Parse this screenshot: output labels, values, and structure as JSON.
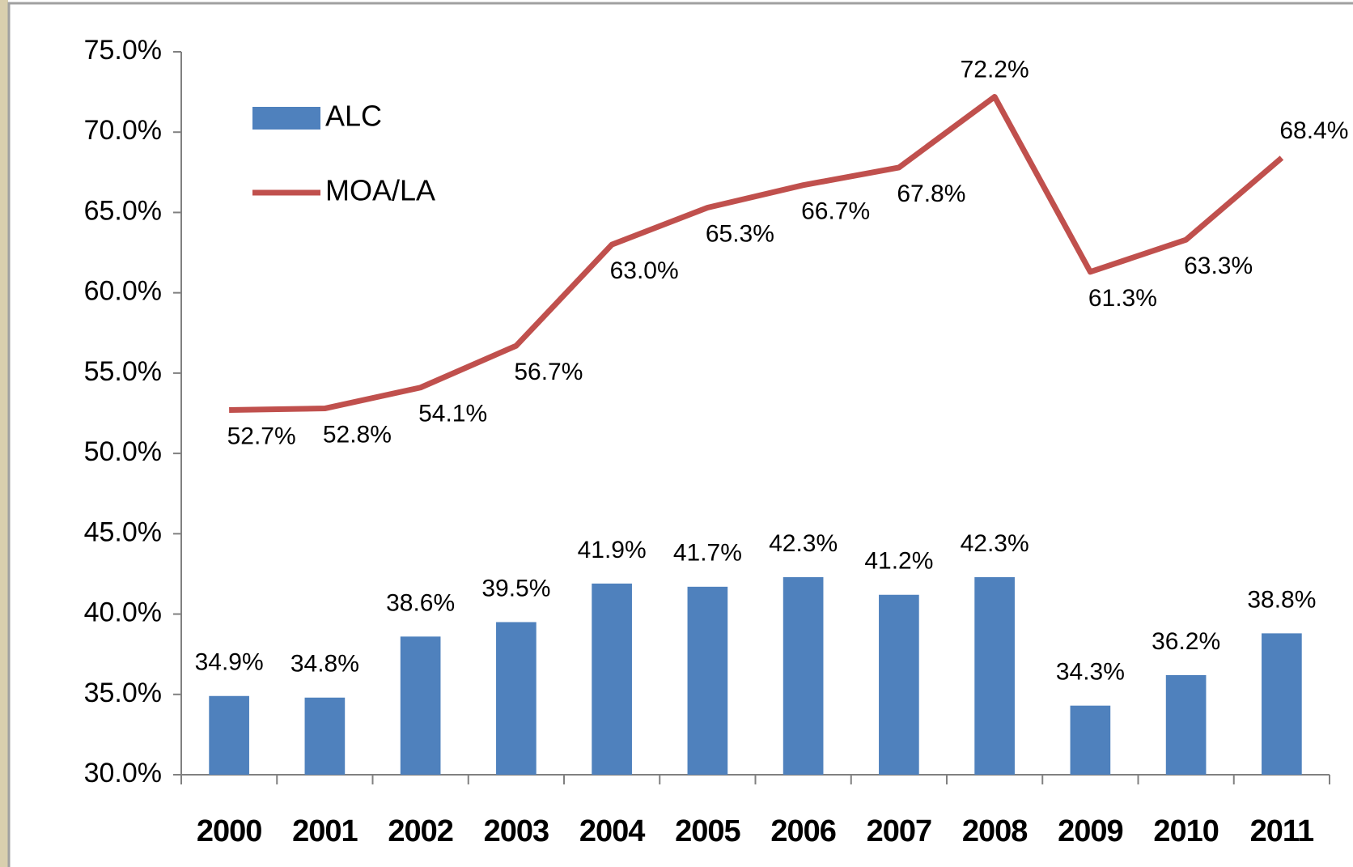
{
  "chart_data": {
    "type": "bar",
    "categories": [
      "2000",
      "2001",
      "2002",
      "2003",
      "2004",
      "2005",
      "2006",
      "2007",
      "2008",
      "2009",
      "2010",
      "2011"
    ],
    "series": [
      {
        "name": "ALC",
        "type": "bar",
        "color": "#4f81bd",
        "values": [
          34.9,
          34.8,
          38.6,
          39.5,
          41.9,
          41.7,
          42.3,
          41.2,
          42.3,
          34.3,
          36.2,
          38.8
        ],
        "value_labels": [
          "34.9%",
          "34.8%",
          "38.6%",
          "39.5%",
          "41.9%",
          "41.7%",
          "42.3%",
          "41.2%",
          "42.3%",
          "34.3%",
          "36.2%",
          "38.8%"
        ]
      },
      {
        "name": "MOA/LA",
        "type": "line",
        "color": "#c0504d",
        "values": [
          52.7,
          52.8,
          54.1,
          56.7,
          63.0,
          65.3,
          66.7,
          67.8,
          72.2,
          61.3,
          63.3,
          68.4
        ],
        "value_labels": [
          "52.7%",
          "52.8%",
          "54.1%",
          "56.7%",
          "63.0%",
          "65.3%",
          "66.7%",
          "67.8%",
          "72.2%",
          "61.3%",
          "63.3%",
          "68.4%"
        ]
      }
    ],
    "ylim": [
      30,
      75
    ],
    "yticks": [
      {
        "value": 30,
        "label": "30.0%"
      },
      {
        "value": 35,
        "label": "35.0%"
      },
      {
        "value": 40,
        "label": "40.0%"
      },
      {
        "value": 45,
        "label": "45.0%"
      },
      {
        "value": 50,
        "label": "50.0%"
      },
      {
        "value": 55,
        "label": "55.0%"
      },
      {
        "value": 60,
        "label": "60.0%"
      },
      {
        "value": 65,
        "label": "65.0%"
      },
      {
        "value": 70,
        "label": "70.0%"
      },
      {
        "value": 75,
        "label": "75.0%"
      }
    ],
    "legend": "upper left",
    "grid": false
  }
}
